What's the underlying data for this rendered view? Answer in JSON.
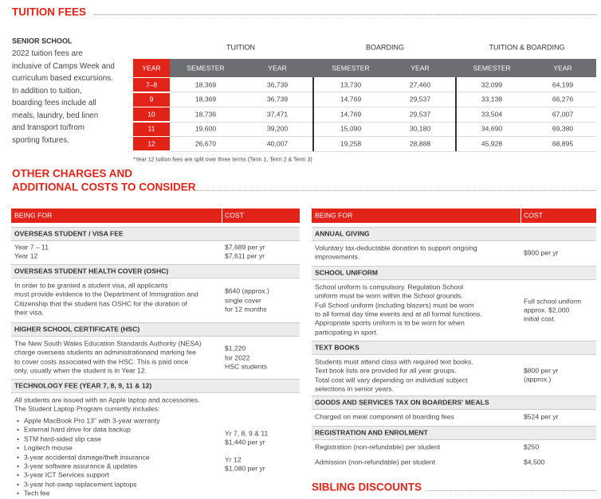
{
  "tuition": {
    "title": "TUITION FEES",
    "intro_heading": "SENIOR SCHOOL",
    "intro_lines": [
      "2022 tuition fees are",
      "inclusive of Camps Week and",
      "curriculum based excursions.",
      "In addition to tuition,",
      "boarding fees include all",
      "meals, laundry, bed linen",
      "and transport to/from",
      "sporting fixtures."
    ],
    "groups": [
      "TUITION",
      "BOARDING",
      "TUITION & BOARDING"
    ],
    "columns": [
      "YEAR",
      "SEMESTER",
      "YEAR",
      "SEMESTER",
      "YEAR",
      "SEMESTER",
      "YEAR"
    ],
    "rows": [
      [
        "7–8",
        "18,369",
        "36,739",
        "13,730",
        "27,460",
        "32,099",
        "64,199"
      ],
      [
        "9",
        "18,369",
        "36,739",
        "14,769",
        "29,537",
        "33,138",
        "66,276"
      ],
      [
        "10",
        "18,736",
        "37,471",
        "14,769",
        "29,537",
        "33,504",
        "67,007"
      ],
      [
        "11",
        "19,600",
        "39,200",
        "15,090",
        "30,180",
        "34,690",
        "69,380"
      ],
      [
        "12",
        "26,670",
        "40,007",
        "19,258",
        "28,888",
        "45,928",
        "68,895"
      ]
    ],
    "footnote": "*Year 12 tuition fees are split over three terms (Term 1, Term 2 & Term 3)"
  },
  "other": {
    "title_lines": [
      "OTHER CHARGES AND",
      "ADDITIONAL COSTS TO CONSIDER"
    ],
    "left": {
      "header": [
        "BEING FOR",
        "COST"
      ],
      "sections": [
        {
          "title": "OVERSEAS STUDENT / VISA FEE",
          "rows": [
            {
              "item": [
                "Year 7 – 11",
                "Year 12"
              ],
              "cost": [
                "$7,689 per yr",
                "$7,611 per yr"
              ]
            }
          ]
        },
        {
          "title": "OVERSEAS STUDENT HEALTH COVER (OSHC)",
          "rows": [
            {
              "item": [
                "In order to be granted a student visa, all applicants",
                "must provide evidence to the Department of Immigration and",
                "Citizenship that the student has OSHC for the duration of",
                "their visa."
              ],
              "cost": [
                "$640 (approx.)",
                "single cover",
                "for 12 months"
              ]
            }
          ]
        },
        {
          "title": "HIGHER SCHOOL CERTIFICATE (HSC)",
          "rows": [
            {
              "item": [
                "The New South Wales Education Standards Authority (NESA)",
                "charge overseas students an administrationand marking fee",
                "to cover costs associated with the HSC. This is paid once",
                "only, usually when the student is in Year 12."
              ],
              "cost": [
                "$1,220",
                "for 2022",
                "HSC students"
              ]
            }
          ]
        },
        {
          "title": "TECHNOLOGY FEE (YEAR 7, 8, 9, 11 & 12)",
          "rows": [
            {
              "item": [
                "All students are issued with an Apple laptop and accessories.",
                "The Student Laptop Program currently includes:"
              ],
              "bullets": [
                "Apple MacBook Pro 13\" with 3-year warranty",
                "External hard drive for data backup",
                "STM hard-sided slip case",
                "Logitech mouse",
                "3-year accidental damage/theft insurance",
                "3-year software assurance & updates",
                "3-year ICT Services support",
                "3-year hot-swap replacement laptops",
                "Tech fee"
              ],
              "cost": [
                "Yr 7, 8, 9 & 11",
                "$1,440 per yr",
                "Yr 12",
                "$1,080 per yr"
              ]
            }
          ]
        }
      ]
    },
    "right": {
      "header": [
        "BEING FOR",
        "COST"
      ],
      "sections": [
        {
          "title": "ANNUAL GIVING",
          "rows": [
            {
              "item": [
                "Voluntary tax-deductable donation to support ongoing",
                "improvements."
              ],
              "cost": [
                "$900 per yr"
              ]
            }
          ]
        },
        {
          "title": "SCHOOL UNIFORM",
          "rows": [
            {
              "item": [
                "School uniform is compulsory. Regulation School",
                "uniform must be worn within the School grounds.",
                "Full School uniform (including blazers) must be worn",
                "to all formal day time events and at all formal functions.",
                "Appropriate sports uniform is to be worn for when",
                "participating in sport."
              ],
              "cost": [
                "Full school uniform",
                "approx. $2,000",
                "initial cost."
              ]
            }
          ]
        },
        {
          "title": "TEXT BOOKS",
          "rows": [
            {
              "item": [
                "Students must attend class with required text books.",
                "Text book lists are provided for all year groups.",
                "Total cost will vary depending on individual subject",
                "selections in senior years."
              ],
              "cost": [
                "$800 per yr",
                "(approx.)"
              ]
            }
          ]
        },
        {
          "title": "GOODS AND SERVICES TAX ON BOARDERS' MEALS",
          "rows": [
            {
              "item": [
                "Charged on meal component of boarding fees"
              ],
              "cost": [
                "$524 per yr"
              ]
            }
          ]
        },
        {
          "title": "REGISTRATION AND ENROLMENT",
          "rows": [
            {
              "item": [
                "Registration (non-refundable) per student"
              ],
              "cost": [
                "$250"
              ]
            },
            {
              "item": [
                "Admission (non-refundable) per student"
              ],
              "cost": [
                "$4,500"
              ]
            }
          ]
        }
      ]
    }
  },
  "sibling": {
    "title": "SIBLING DISCOUNTS"
  }
}
